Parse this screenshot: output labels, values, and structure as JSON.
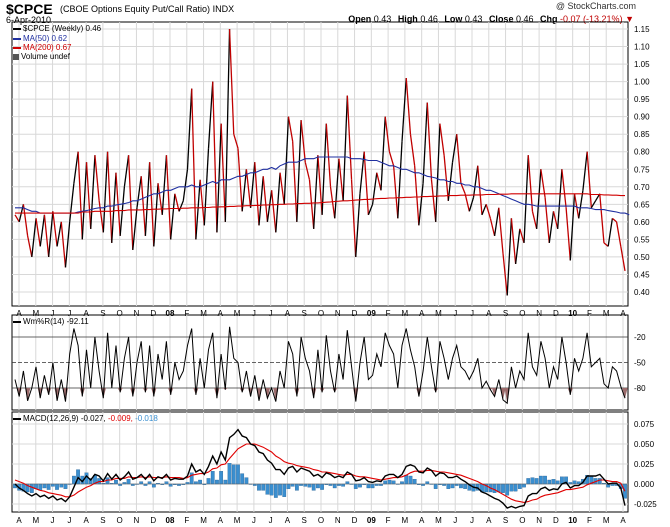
{
  "header": {
    "symbol": "$CPCE",
    "description": "(CBOE Options Equity Put/Call Ratio)",
    "exchange": "INDX",
    "date": "6-Apr-2010",
    "credit": "@ StockCharts.com",
    "open_label": "Open",
    "open": "0.43",
    "high_label": "High",
    "high": "0.46",
    "low_label": "Low",
    "low": "0.43",
    "close_label": "Close",
    "close": "0.46",
    "chg_label": "Chg",
    "chg": "-0.07 (-13.21%)"
  },
  "legend": {
    "price": "$CPCE (Weekly) 0.46",
    "ma50": "MA(50) 0.62",
    "ma200": "MA(200) 0.67",
    "volume": "Volume undef",
    "willr_label": "Wm%R(14)",
    "willr_value": "-92.11",
    "macd_label": "MACD(12,26,9)",
    "macd_v1": "-0.027,",
    "macd_v2": "-0.009,",
    "macd_v3": "-0.018"
  },
  "colors": {
    "up": "#000000",
    "down": "#c00000",
    "ma50": "#1f2fa0",
    "ma200": "#d00000",
    "signal": "#e00000",
    "hist": "#3a8fd0",
    "grid": "#d8d8d8",
    "fill_willr": "#9b6b6b"
  },
  "x_ticks": [
    "A",
    "M",
    "J",
    "J",
    "A",
    "S",
    "O",
    "N",
    "D",
    "08",
    "F",
    "M",
    "A",
    "M",
    "J",
    "J",
    "A",
    "S",
    "O",
    "N",
    "D",
    "09",
    "F",
    "M",
    "A",
    "M",
    "J",
    "J",
    "A",
    "S",
    "O",
    "N",
    "D",
    "10",
    "F",
    "M",
    "A"
  ],
  "chart_data": [
    {
      "type": "line",
      "title": "$CPCE (CBOE Options Equity Put/Call Ratio)",
      "ylim": [
        0.36,
        1.17
      ],
      "yticks": [
        0.4,
        0.45,
        0.5,
        0.55,
        0.6,
        0.65,
        0.7,
        0.75,
        0.8,
        0.85,
        0.9,
        0.95,
        1.0,
        1.05,
        1.1,
        1.15
      ],
      "series": [
        {
          "name": "$CPCE (Weekly)",
          "values": [
            0.62,
            0.6,
            0.65,
            0.56,
            0.5,
            0.61,
            0.53,
            0.62,
            0.5,
            0.63,
            0.53,
            0.6,
            0.47,
            0.6,
            0.71,
            0.8,
            0.55,
            0.77,
            0.58,
            0.79,
            0.66,
            0.57,
            0.8,
            0.54,
            0.74,
            0.56,
            0.7,
            0.79,
            0.52,
            0.64,
            0.73,
            0.56,
            0.77,
            0.53,
            0.71,
            0.62,
            0.79,
            0.55,
            0.68,
            0.63,
            0.66,
            0.75,
            0.98,
            0.55,
            0.72,
            0.59,
            0.81,
            1.0,
            0.57,
            0.88,
            0.6,
            1.15,
            0.85,
            0.81,
            0.63,
            0.75,
            0.64,
            0.77,
            0.59,
            0.73,
            0.6,
            0.69,
            0.57,
            0.74,
            0.65,
            0.9,
            0.83,
            0.6,
            0.89,
            0.77,
            0.72,
            0.58,
            0.79,
            0.62,
            0.88,
            0.7,
            0.61,
            0.78,
            0.66,
            0.96,
            0.72,
            0.5,
            0.68,
            0.8,
            0.62,
            0.65,
            0.74,
            0.69,
            0.9,
            0.8,
            0.76,
            0.61,
            0.83,
            1.01,
            0.85,
            0.76,
            0.59,
            0.71,
            0.94,
            0.72,
            0.6,
            0.88,
            0.79,
            0.66,
            0.77,
            0.85,
            0.71,
            0.68,
            0.63,
            0.67,
            0.76,
            0.62,
            0.65,
            0.61,
            0.56,
            0.64,
            0.51,
            0.39,
            0.61,
            0.48,
            0.58,
            0.54,
            0.79,
            0.63,
            0.58,
            0.75,
            0.67,
            0.54,
            0.63,
            0.58,
            0.75,
            0.64,
            0.49,
            0.68,
            0.61,
            0.69,
            0.8,
            0.64,
            0.66,
            0.68,
            0.54,
            0.53,
            0.61,
            0.6,
            0.53,
            0.46
          ]
        },
        {
          "name": "MA(50)",
          "values": [
            0.64,
            0.64,
            0.64,
            0.635,
            0.63,
            0.63,
            0.625,
            0.625,
            0.625,
            0.625,
            0.625,
            0.625,
            0.625,
            0.625,
            0.625,
            0.628,
            0.63,
            0.632,
            0.635,
            0.638,
            0.64,
            0.64,
            0.645,
            0.645,
            0.648,
            0.65,
            0.652,
            0.655,
            0.66,
            0.66,
            0.665,
            0.67,
            0.675,
            0.68,
            0.68,
            0.685,
            0.69,
            0.69,
            0.695,
            0.7,
            0.7,
            0.7,
            0.705,
            0.7,
            0.7,
            0.705,
            0.71,
            0.715,
            0.71,
            0.72,
            0.72,
            0.72,
            0.725,
            0.73,
            0.73,
            0.735,
            0.74,
            0.74,
            0.745,
            0.75,
            0.75,
            0.755,
            0.75,
            0.76,
            0.765,
            0.77,
            0.77,
            0.77,
            0.775,
            0.78,
            0.78,
            0.78,
            0.785,
            0.785,
            0.785,
            0.785,
            0.785,
            0.785,
            0.785,
            0.785,
            0.78,
            0.78,
            0.78,
            0.778,
            0.775,
            0.775,
            0.775,
            0.77,
            0.765,
            0.76,
            0.76,
            0.755,
            0.75,
            0.75,
            0.745,
            0.74,
            0.74,
            0.735,
            0.73,
            0.728,
            0.725,
            0.72,
            0.72,
            0.715,
            0.715,
            0.71,
            0.71,
            0.705,
            0.705,
            0.7,
            0.7,
            0.695,
            0.69,
            0.69,
            0.685,
            0.68,
            0.675,
            0.67,
            0.665,
            0.66,
            0.655,
            0.65,
            0.65,
            0.648,
            0.645,
            0.645,
            0.645,
            0.645,
            0.645,
            0.645,
            0.645,
            0.645,
            0.645,
            0.645,
            0.64,
            0.64,
            0.64,
            0.638,
            0.635,
            0.635,
            0.635,
            0.632,
            0.63,
            0.628,
            0.625,
            0.625,
            0.62
          ]
        },
        {
          "name": "MA(200)",
          "values": [
            0.625,
            0.625,
            0.625,
            0.625,
            0.625,
            0.625,
            0.625,
            0.625,
            0.625,
            0.625,
            0.625,
            0.625,
            0.625,
            0.625,
            0.625,
            0.625,
            0.628,
            0.628,
            0.628,
            0.63,
            0.63,
            0.63,
            0.63,
            0.63,
            0.632,
            0.632,
            0.632,
            0.634,
            0.634,
            0.634,
            0.634,
            0.635,
            0.635,
            0.636,
            0.636,
            0.637,
            0.637,
            0.638,
            0.638,
            0.638,
            0.639,
            0.639,
            0.64,
            0.64,
            0.64,
            0.641,
            0.641,
            0.642,
            0.642,
            0.643,
            0.643,
            0.644,
            0.644,
            0.645,
            0.645,
            0.646,
            0.646,
            0.647,
            0.647,
            0.648,
            0.648,
            0.649,
            0.649,
            0.65,
            0.65,
            0.651,
            0.651,
            0.652,
            0.652,
            0.653,
            0.653,
            0.654,
            0.654,
            0.655,
            0.656,
            0.657,
            0.658,
            0.659,
            0.66,
            0.66,
            0.661,
            0.662,
            0.663,
            0.664,
            0.664,
            0.665,
            0.666,
            0.667,
            0.667,
            0.668,
            0.668,
            0.669,
            0.669,
            0.67,
            0.67,
            0.671,
            0.671,
            0.672,
            0.672,
            0.673,
            0.673,
            0.674,
            0.674,
            0.675,
            0.675,
            0.675,
            0.676,
            0.676,
            0.676,
            0.677,
            0.677,
            0.677,
            0.678,
            0.678,
            0.678,
            0.679,
            0.679,
            0.679,
            0.68,
            0.68,
            0.68,
            0.68,
            0.68,
            0.68,
            0.68,
            0.68,
            0.68,
            0.68,
            0.68,
            0.68,
            0.68,
            0.68,
            0.68,
            0.68,
            0.68,
            0.68,
            0.68,
            0.678,
            0.678,
            0.678,
            0.677,
            0.677,
            0.676,
            0.676,
            0.675,
            0.675
          ]
        }
      ]
    },
    {
      "type": "line",
      "title": "Wm%R(14)",
      "ylim": [
        -100,
        0
      ],
      "yticks": [
        -20,
        -50,
        -80
      ],
      "series": [
        {
          "name": "Wm%R(14)",
          "values": [
            -70,
            -90,
            -60,
            -95,
            -80,
            -55,
            -92,
            -65,
            -88,
            -50,
            -95,
            -70,
            -96,
            -40,
            -10,
            -30,
            -90,
            -35,
            -80,
            -20,
            -60,
            -92,
            -15,
            -80,
            -30,
            -85,
            -45,
            -20,
            -90,
            -50,
            -25,
            -85,
            -30,
            -90,
            -40,
            -70,
            -25,
            -88,
            -50,
            -70,
            -60,
            -30,
            -10,
            -88,
            -45,
            -80,
            -35,
            -15,
            -92,
            -40,
            -82,
            -8,
            -45,
            -50,
            -85,
            -60,
            -90,
            -65,
            -95,
            -70,
            -92,
            -80,
            -96,
            -60,
            -80,
            -25,
            -40,
            -90,
            -20,
            -45,
            -60,
            -92,
            -35,
            -85,
            -18,
            -60,
            -85,
            -40,
            -70,
            -12,
            -55,
            -96,
            -50,
            -20,
            -70,
            -65,
            -40,
            -55,
            -15,
            -30,
            -40,
            -80,
            -30,
            -10,
            -35,
            -55,
            -90,
            -60,
            -20,
            -55,
            -85,
            -25,
            -45,
            -70,
            -45,
            -30,
            -55,
            -60,
            -70,
            -60,
            -45,
            -80,
            -72,
            -82,
            -90,
            -70,
            -94,
            -98,
            -55,
            -80,
            -60,
            -70,
            -15,
            -55,
            -65,
            -25,
            -45,
            -80,
            -55,
            -70,
            -20,
            -50,
            -88,
            -45,
            -60,
            -45,
            -15,
            -55,
            -50,
            -45,
            -75,
            -80,
            -55,
            -60,
            -78,
            -92
          ]
        }
      ]
    },
    {
      "type": "line",
      "title": "MACD(12,26,9)",
      "ylim": [
        -0.035,
        0.09
      ],
      "yticks": [
        -0.025,
        0.0,
        0.025,
        0.05,
        0.075
      ],
      "series": [
        {
          "name": "MACD",
          "values": [
            0.0,
            -0.005,
            -0.008,
            -0.012,
            -0.015,
            -0.012,
            -0.016,
            -0.014,
            -0.018,
            -0.015,
            -0.02,
            -0.018,
            -0.022,
            -0.016,
            -0.004,
            0.008,
            0.003,
            0.01,
            0.005,
            0.012,
            0.01,
            0.004,
            0.013,
            0.006,
            0.012,
            0.005,
            0.009,
            0.015,
            0.006,
            0.008,
            0.012,
            0.006,
            0.012,
            0.004,
            0.009,
            0.007,
            0.012,
            0.005,
            0.007,
            0.006,
            0.006,
            0.01,
            0.025,
            0.015,
            0.018,
            0.012,
            0.022,
            0.035,
            0.025,
            0.04,
            0.03,
            0.058,
            0.062,
            0.068,
            0.06,
            0.058,
            0.05,
            0.048,
            0.04,
            0.038,
            0.03,
            0.026,
            0.018,
            0.018,
            0.012,
            0.02,
            0.022,
            0.015,
            0.02,
            0.018,
            0.016,
            0.01,
            0.012,
            0.008,
            0.014,
            0.012,
            0.008,
            0.01,
            0.008,
            0.015,
            0.012,
            0.004,
            0.005,
            0.008,
            0.003,
            0.002,
            0.004,
            0.003,
            0.01,
            0.012,
            0.012,
            0.008,
            0.012,
            0.022,
            0.024,
            0.022,
            0.015,
            0.014,
            0.02,
            0.017,
            0.01,
            0.014,
            0.013,
            0.008,
            0.008,
            0.01,
            0.006,
            0.003,
            -0.001,
            -0.004,
            -0.005,
            -0.01,
            -0.012,
            -0.015,
            -0.018,
            -0.02,
            -0.024,
            -0.03,
            -0.028,
            -0.03,
            -0.028,
            -0.027,
            -0.015,
            -0.012,
            -0.012,
            -0.006,
            -0.004,
            -0.008,
            -0.006,
            -0.007,
            0.0,
            0.002,
            -0.005,
            -0.002,
            -0.002,
            0.002,
            0.01,
            0.01,
            0.01,
            0.012,
            0.006,
            0.0,
            0.001,
            0.001,
            -0.005,
            -0.027
          ]
        },
        {
          "name": "Signal",
          "values": [
            0.005,
            0.003,
            0.001,
            -0.002,
            -0.004,
            -0.006,
            -0.008,
            -0.009,
            -0.011,
            -0.012,
            -0.013,
            -0.014,
            -0.016,
            -0.016,
            -0.014,
            -0.01,
            -0.007,
            -0.004,
            -0.002,
            0.001,
            0.003,
            0.003,
            0.005,
            0.005,
            0.007,
            0.007,
            0.007,
            0.009,
            0.008,
            0.008,
            0.009,
            0.008,
            0.009,
            0.008,
            0.008,
            0.008,
            0.009,
            0.008,
            0.008,
            0.008,
            0.007,
            0.008,
            0.011,
            0.012,
            0.013,
            0.013,
            0.015,
            0.019,
            0.02,
            0.024,
            0.025,
            0.032,
            0.038,
            0.044,
            0.047,
            0.05,
            0.05,
            0.05,
            0.048,
            0.046,
            0.043,
            0.04,
            0.035,
            0.032,
            0.028,
            0.026,
            0.025,
            0.023,
            0.022,
            0.021,
            0.02,
            0.018,
            0.017,
            0.015,
            0.015,
            0.014,
            0.013,
            0.012,
            0.011,
            0.012,
            0.012,
            0.01,
            0.009,
            0.009,
            0.008,
            0.007,
            0.006,
            0.005,
            0.006,
            0.007,
            0.008,
            0.008,
            0.009,
            0.011,
            0.014,
            0.016,
            0.016,
            0.016,
            0.017,
            0.017,
            0.016,
            0.015,
            0.015,
            0.014,
            0.013,
            0.012,
            0.011,
            0.009,
            0.007,
            0.005,
            0.003,
            0.0,
            -0.002,
            -0.005,
            -0.007,
            -0.01,
            -0.013,
            -0.016,
            -0.019,
            -0.021,
            -0.022,
            -0.023,
            -0.022,
            -0.02,
            -0.019,
            -0.016,
            -0.014,
            -0.013,
            -0.012,
            -0.011,
            -0.009,
            -0.007,
            -0.007,
            -0.006,
            -0.005,
            -0.004,
            -0.001,
            0.001,
            0.003,
            0.005,
            0.005,
            0.004,
            0.003,
            0.003,
            0.001,
            -0.009
          ]
        }
      ]
    }
  ]
}
